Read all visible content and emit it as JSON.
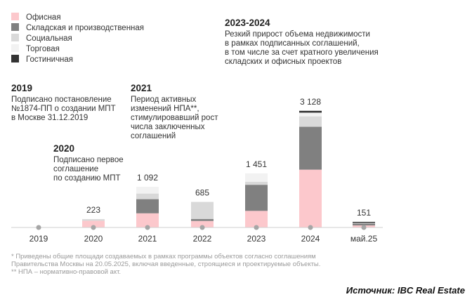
{
  "chart_data": {
    "type": "bar",
    "stacked": true,
    "categories": [
      "2019",
      "2020",
      "2021",
      "2022",
      "2023",
      "2024",
      "май.25"
    ],
    "totals": [
      "",
      "223",
      "1 092",
      "685",
      "1 451",
      "3 128",
      "151"
    ],
    "series": [
      {
        "name": "Офисная",
        "color": "#fcc8cc",
        "values": [
          0,
          180,
          380,
          175,
          445,
          1550,
          55
        ]
      },
      {
        "name": "Складская и производственная",
        "color": "#808080",
        "values": [
          0,
          0,
          380,
          50,
          700,
          1150,
          50
        ]
      },
      {
        "name": "Социальная",
        "color": "#d9d9d9",
        "values": [
          0,
          43,
          150,
          460,
          80,
          280,
          20
        ]
      },
      {
        "name": "Торговая",
        "color": "#f2f2f2",
        "values": [
          0,
          0,
          182,
          0,
          226,
          98,
          0
        ]
      },
      {
        "name": "Гостиничная",
        "color": "#333333",
        "values": [
          0,
          0,
          0,
          0,
          0,
          50,
          26
        ]
      }
    ],
    "ylim": [
      0,
      3200
    ],
    "legend_position": "top-left",
    "annotations": [
      {
        "title": "2019",
        "lines": [
          "Подписано постановление",
          "№1874-ПП о создании МПТ",
          "в Москве 31.12.2019"
        ]
      },
      {
        "title": "2020",
        "lines": [
          "Подписано первое",
          "соглашение",
          "по созданию МПТ"
        ]
      },
      {
        "title": "2021",
        "lines": [
          "Период активных",
          "изменений НПА**,",
          "стимулировавший рост",
          "числа заключенных",
          "соглашений"
        ]
      },
      {
        "title": "2023-2024",
        "lines": [
          "Резкий прирост объема недвижимости",
          "в рамках подписанных соглашений,",
          "в том числе за счет кратного увеличения",
          "складских и офисных проектов"
        ]
      }
    ]
  },
  "footnotes": [
    "* Приведены общие площади создаваемых в рамках программы объектов согласно соглашениям",
    "Правительства Москвы на 20.05.2025, включая введенные, строящиеся и проектируемые объекты.",
    "** НПА – нормативно-правовой акт."
  ],
  "source": "Источник: IBC Real Estate",
  "colors": {
    "axis": "#cfcfcf",
    "marker": "#a6a6a6"
  }
}
